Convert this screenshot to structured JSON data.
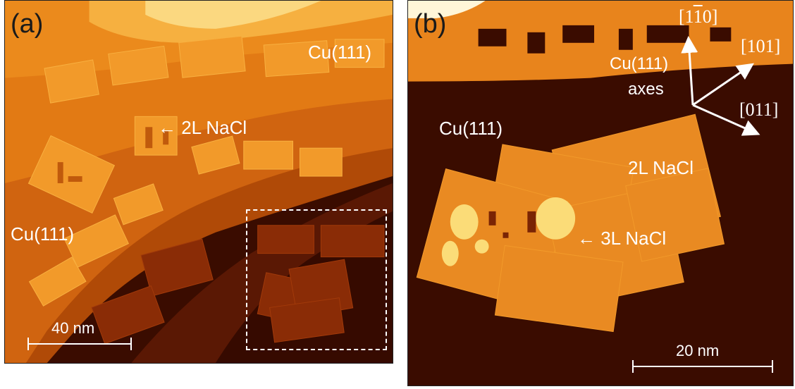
{
  "panel_a": {
    "tag": "(a)",
    "labels": {
      "cu_top": "Cu(111)",
      "nacl_2l": "← 2L NaCl",
      "cu_left": "Cu(111)"
    },
    "scale_bar": "40 nm"
  },
  "panel_b": {
    "tag": "(b)",
    "labels": {
      "cu_axes_1": "Cu(111)",
      "cu_axes_2": "axes",
      "cu": "Cu(111)",
      "nacl_2l": "2L NaCl",
      "nacl_3l": "← 3L NaCl"
    },
    "directions": {
      "d1": "[1̄0]",
      "d1_base": "[1",
      "d1_bar": "1",
      "d1_end": "0]",
      "d2": "[101]",
      "d3": "[011]"
    },
    "scale_bar": "20 nm"
  },
  "colors": {
    "cu_dark": "#3a0c00",
    "terrace_mid": "#9a3a05",
    "terrace_orange": "#d96a0c",
    "nacl_2l": "#f09a28",
    "nacl_3l": "#fbe07a"
  }
}
